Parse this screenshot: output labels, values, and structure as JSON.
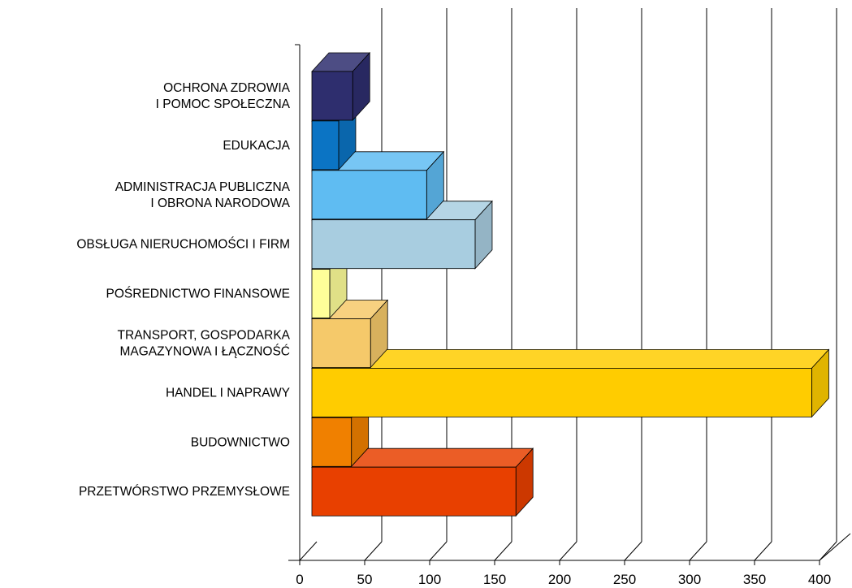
{
  "chart_data": {
    "type": "bar",
    "orientation": "horizontal",
    "three_d": true,
    "categories": [
      [
        "OCHRONA ZDROWIA",
        "I POMOC SPOŁECZNA"
      ],
      [
        "EDUKACJA"
      ],
      [
        "ADMINISTRACJA PUBLICZNA",
        "I OBRONA NARODOWA"
      ],
      [
        "OBSŁUGA NIERUCHOMOŚCI I FIRM"
      ],
      [
        "POŚREDNICTWO FINANSOWE"
      ],
      [
        "TRANSPORT, GOSPODARKA",
        "MAGAZYNOWA I ŁĄCZNOŚĆ"
      ],
      [
        "HANDEL  I NAPRAWY"
      ],
      [
        "BUDOWNICTWO"
      ],
      [
        "PRZETWÓRSTWO PRZEMYSŁOWE"
      ]
    ],
    "values": [
      32,
      21,
      90,
      128,
      14,
      46,
      392,
      31,
      160
    ],
    "colors": [
      "#2e2e6e",
      "#0b74c4",
      "#5fbcf2",
      "#a8cde0",
      "#ffff99",
      "#f5c96a",
      "#ffcc00",
      "#f08000",
      "#e84000"
    ],
    "xlim": [
      0,
      400
    ],
    "x_ticks": [
      "0",
      "50",
      "100",
      "150",
      "200",
      "250",
      "300",
      "350",
      "400"
    ],
    "grid": true,
    "legend": false,
    "title": "",
    "xlabel": "",
    "ylabel": ""
  }
}
